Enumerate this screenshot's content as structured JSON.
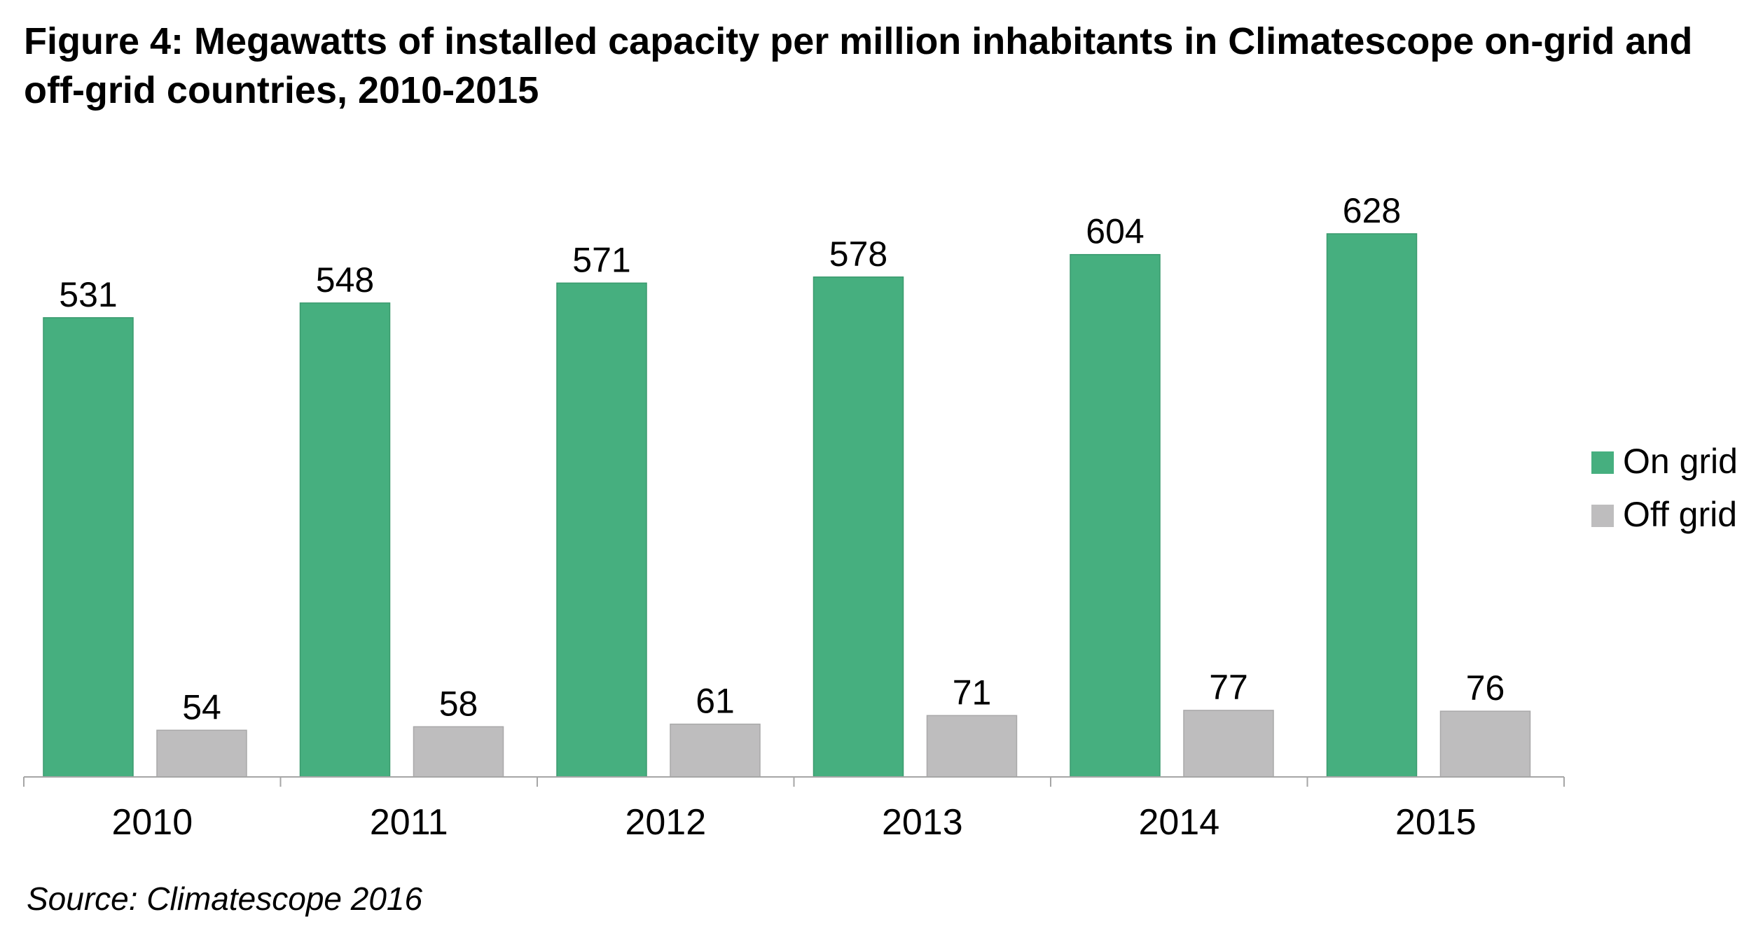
{
  "title": "Figure 4: Megawatts of installed capacity per million inhabitants in Climatescope on-grid and off-grid countries, 2010-2015",
  "source": "Source: Climatescope 2016",
  "chart_data": {
    "type": "bar",
    "title": "Figure 4: Megawatts of installed capacity per million inhabitants in Climatescope on-grid and off-grid countries, 2010-2015",
    "xlabel": "",
    "ylabel": "",
    "categories": [
      "2010",
      "2011",
      "2012",
      "2013",
      "2014",
      "2015"
    ],
    "series": [
      {
        "name": "On grid",
        "color": "#46AF7F",
        "values": [
          531,
          548,
          571,
          578,
          604,
          628
        ]
      },
      {
        "name": "Off grid",
        "color": "#BEBDBE",
        "values": [
          54,
          58,
          61,
          71,
          77,
          76
        ]
      }
    ],
    "ylim": [
      0,
      700
    ],
    "y_axis_visible": false,
    "grid": false,
    "data_labels": true,
    "legend": "right"
  }
}
